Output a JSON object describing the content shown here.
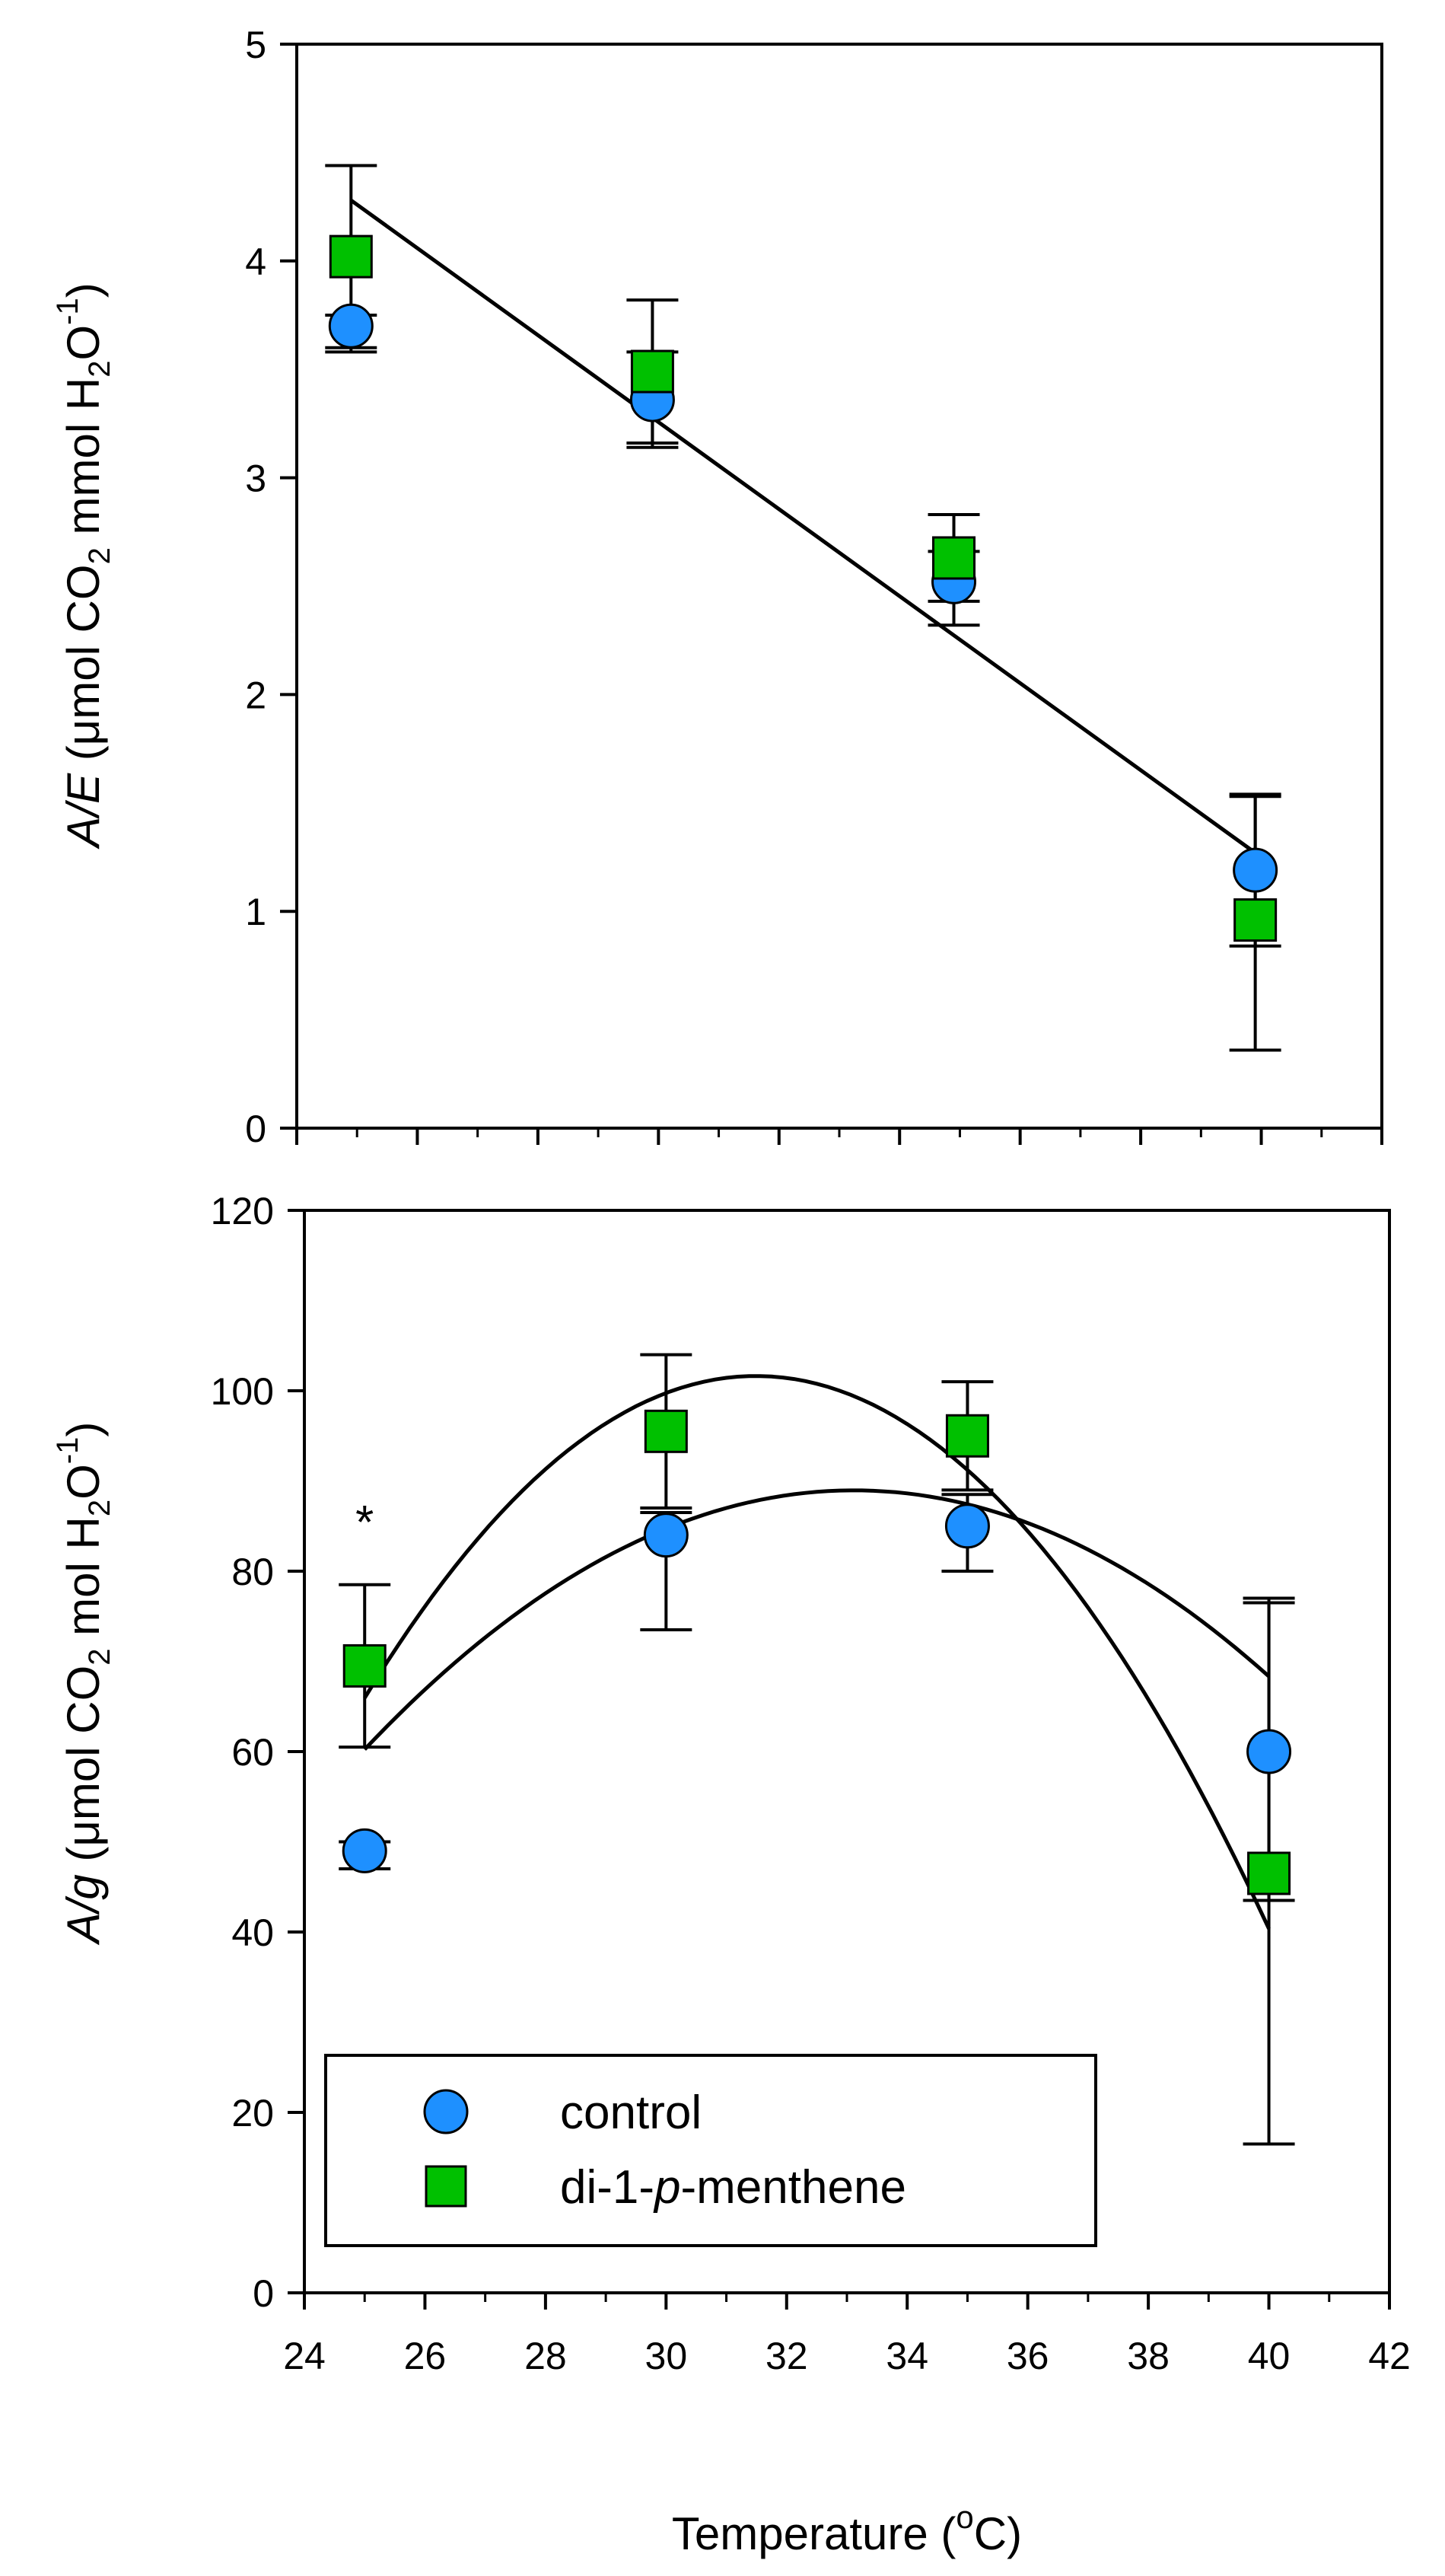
{
  "colors": {
    "control": "#1E90FF",
    "treatment": "#00C000",
    "line": "#000000"
  },
  "xlabel": {
    "prefix": "Temperature (",
    "sup": "o",
    "suffix": "C)"
  },
  "legend": {
    "placement": "bottom-left of lower panel",
    "items": [
      {
        "key": "control",
        "label": "control",
        "marker": "circle"
      },
      {
        "key": "treatment",
        "label_parts": [
          "di-1-",
          "p",
          "-menthene"
        ],
        "marker": "square"
      }
    ]
  },
  "chart_data": [
    {
      "type": "scatter",
      "panel": "top",
      "ylabel_parts": [
        "A/E",
        " (μmol CO",
        "2",
        " mmol H",
        "2",
        "O",
        "-1",
        ")"
      ],
      "xlim": [
        24,
        42
      ],
      "ylim": [
        0,
        5
      ],
      "yticks": [
        "0",
        "1",
        "2",
        "3",
        "4",
        "5"
      ],
      "x_major_ticks": [
        24,
        26,
        28,
        30,
        32,
        34,
        36,
        38,
        40,
        42
      ],
      "series": [
        {
          "name": "control",
          "marker": "circle",
          "x": [
            24.9,
            29.9,
            34.9,
            39.9
          ],
          "y": [
            3.7,
            3.36,
            2.52,
            1.19
          ],
          "err_up": [
            0.05,
            0.22,
            0.14,
            0.35
          ],
          "err_down": [
            0.12,
            0.22,
            0.2,
            0.35
          ]
        },
        {
          "name": "di-1-p-menthene",
          "marker": "square",
          "x": [
            24.9,
            29.9,
            34.9,
            39.9
          ],
          "y": [
            4.02,
            3.49,
            2.63,
            0.96
          ],
          "err_up": [
            0.42,
            0.33,
            0.2,
            0.57
          ],
          "err_down": [
            0.42,
            0.33,
            0.2,
            0.6
          ]
        }
      ],
      "fits": [
        {
          "name": "combined linear fit",
          "kind": "linear",
          "x_range": [
            24.9,
            39.9
          ],
          "y_range": [
            4.28,
            1.27
          ]
        }
      ]
    },
    {
      "type": "scatter",
      "panel": "bottom",
      "ylabel_parts": [
        "A/g",
        " (μmol CO",
        "2",
        " mol H",
        "2",
        "O",
        "-1",
        ")"
      ],
      "xlabel": "Temperature (oC)",
      "xlim": [
        24,
        42
      ],
      "ylim": [
        0,
        120
      ],
      "yticks": [
        "0",
        "20",
        "40",
        "60",
        "80",
        "100",
        "120"
      ],
      "xticks": [
        "24",
        "26",
        "28",
        "30",
        "32",
        "34",
        "36",
        "38",
        "40",
        "42"
      ],
      "series": [
        {
          "name": "control",
          "marker": "circle",
          "x": [
            25,
            30,
            35,
            40
          ],
          "y": [
            49,
            84,
            85,
            60
          ],
          "err_up": [
            1,
            2.5,
            3.5,
            16.5
          ],
          "err_down": [
            2,
            10.5,
            5,
            16.5
          ]
        },
        {
          "name": "di-1-p-menthene",
          "marker": "square",
          "x": [
            25,
            30,
            35,
            40
          ],
          "y": [
            69.5,
            95.5,
            95,
            46.5
          ],
          "err_up": [
            9,
            8.5,
            6,
            30.5
          ],
          "err_down": [
            9,
            8.5,
            6,
            30
          ]
        }
      ],
      "fits": [
        {
          "name": "control quadratic fit",
          "kind": "quadratic",
          "x_range": [
            25,
            40
          ],
          "coeffs": [
            -0.4357,
            28.86,
            -388.95
          ]
        },
        {
          "name": "di-1-p-menthene quadratic fit",
          "kind": "quadratic",
          "x_range": [
            25,
            40
          ],
          "coeffs": [
            -0.8467,
            53.33,
            -738.12
          ]
        }
      ],
      "annotations": [
        {
          "text": "*",
          "x": 25,
          "y": 87,
          "meaning": "significant difference at 25 °C"
        }
      ]
    }
  ]
}
